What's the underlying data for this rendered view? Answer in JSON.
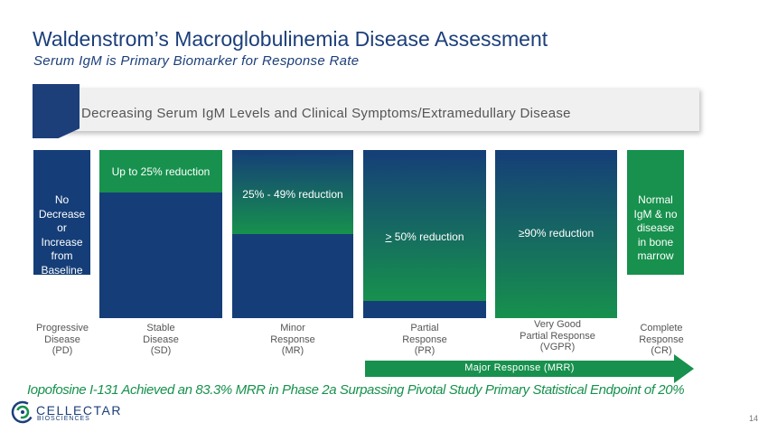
{
  "header": {
    "title": "Waldenstrom’s Macroglobulinemia Disease Assessment",
    "subtitle": "Serum IgM is Primary Biomarker for Response Rate"
  },
  "banner": {
    "text": "Decreasing Serum IgM Levels and Clinical Symptoms/Extramedullary Disease"
  },
  "columns": [
    {
      "text": "No\nDecrease\nor\nIncrease\nfrom\nBaseline",
      "label": "Progressive\nDisease\n(PD)"
    },
    {
      "text": "Up to 25% reduction",
      "label": "Stable\nDisease\n(SD)",
      "reduction_fraction": 0.25
    },
    {
      "text": "25% - 49% reduction",
      "label": "Minor\nResponse\n(MR)",
      "reduction_fraction": 0.49
    },
    {
      "text_prefix": ">",
      "text": " 50% reduction",
      "label": "Partial\nResponse\n(PR)",
      "reduction_fraction": 0.9
    },
    {
      "text": "≥90% reduction",
      "label": "Very Good\nPartial Response\n(VGPR)"
    },
    {
      "text": "Normal\nIgM & no\ndisease\nin bone\nmarrow",
      "label": "Complete\nResponse\n(CR)"
    }
  ],
  "arrow": {
    "text": "Major Response (MRR)"
  },
  "footer": {
    "text": "Iopofosine I-131 Achieved an 83.3% MRR in Phase 2a Surpassing Pivotal Study Primary Statistical Endpoint of 20%"
  },
  "logo": {
    "name": "CELLECTAR",
    "sub": "BIOSCIENCES"
  },
  "page_number": "14",
  "colors": {
    "navy": "#153e78",
    "green": "#17914d",
    "title": "#1c3f7a"
  }
}
